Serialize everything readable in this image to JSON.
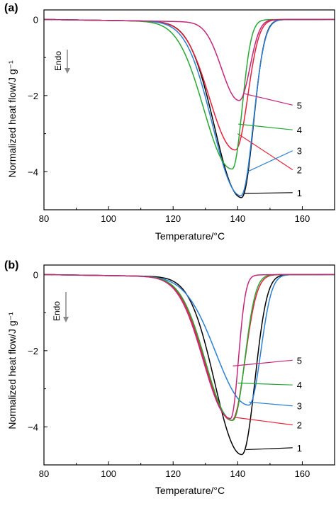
{
  "chart_data": [
    {
      "panel_label": "(a)",
      "type": "line",
      "xlabel": "Temperature/°C",
      "ylabel": "Normalized heat flow/J g⁻¹",
      "xlim": [
        80,
        170
      ],
      "ylim": [
        -5.0,
        0.25
      ],
      "xticks": [
        80,
        100,
        120,
        140,
        160
      ],
      "yticks": [
        0,
        -2,
        -4
      ],
      "annotation": "Endo",
      "series": [
        {
          "name": "1",
          "color": "#000000",
          "peak_x": 141.2,
          "peak_y": -4.6,
          "onset": 92,
          "width_left": 11.5,
          "width_right": 5.0,
          "label_anchor_x": 142.0,
          "label_anchor_y": -4.57,
          "label_y": -4.55
        },
        {
          "name": "2",
          "color": "#e8213a",
          "peak_x": 139.3,
          "peak_y": -3.35,
          "onset": 92,
          "width_left": 11.0,
          "width_right": 5.2,
          "label_anchor_x": 140.0,
          "label_anchor_y": -3.0,
          "label_y": -3.95
        },
        {
          "name": "3",
          "color": "#2a7fd6",
          "peak_x": 141.0,
          "peak_y": -4.55,
          "onset": 90,
          "width_left": 12.0,
          "width_right": 5.2,
          "label_anchor_x": 143.0,
          "label_anchor_y": -4.0,
          "label_y": -3.45
        },
        {
          "name": "4",
          "color": "#27a835",
          "peak_x": 138.3,
          "peak_y": -3.85,
          "onset": 90,
          "width_left": 12.0,
          "width_right": 4.2,
          "label_anchor_x": 140.2,
          "label_anchor_y": -2.75,
          "label_y": -2.9
        },
        {
          "name": "5",
          "color": "#c4277a",
          "peak_x": 140.5,
          "peak_y": -2.05,
          "onset": 118,
          "width_left": 7.5,
          "width_right": 4.5,
          "label_anchor_x": 142.0,
          "label_anchor_y": -1.95,
          "label_y": -2.25
        }
      ]
    },
    {
      "panel_label": "(b)",
      "type": "line",
      "xlabel": "Temperature/°C",
      "ylabel": "Normalized heat flow/J g⁻¹",
      "xlim": [
        80,
        170
      ],
      "ylim": [
        -5.0,
        0.25
      ],
      "xticks": [
        80,
        100,
        120,
        140,
        160
      ],
      "yticks": [
        0,
        -2,
        -4
      ],
      "annotation": "Endo",
      "series": [
        {
          "name": "1",
          "color": "#000000",
          "peak_x": 141.3,
          "peak_y": -4.65,
          "onset": 90,
          "width_left": 11.5,
          "width_right": 5.5,
          "label_anchor_x": 142.5,
          "label_anchor_y": -4.6,
          "label_y": -4.55
        },
        {
          "name": "2",
          "color": "#e8213a",
          "peak_x": 138.2,
          "peak_y": -3.75,
          "onset": 90,
          "width_left": 11.5,
          "width_right": 5.5,
          "label_anchor_x": 139.0,
          "label_anchor_y": -3.75,
          "label_y": -3.95
        },
        {
          "name": "3",
          "color": "#2a7fd6",
          "peak_x": 143.5,
          "peak_y": -3.35,
          "onset": 90,
          "width_left": 14.0,
          "width_right": 5.0,
          "label_anchor_x": 143.5,
          "label_anchor_y": -3.35,
          "label_y": -3.45
        },
        {
          "name": "4",
          "color": "#27a835",
          "peak_x": 138.5,
          "peak_y": -3.75,
          "onset": 90,
          "width_left": 11.5,
          "width_right": 5.0,
          "label_anchor_x": 140.0,
          "label_anchor_y": -2.85,
          "label_y": -2.9
        },
        {
          "name": "5",
          "color": "#c4277a",
          "peak_x": 137.8,
          "peak_y": -3.7,
          "onset": 90,
          "width_left": 11.5,
          "width_right": 3.3,
          "label_anchor_x": 138.5,
          "label_anchor_y": -2.4,
          "label_y": -2.25
        }
      ]
    }
  ]
}
